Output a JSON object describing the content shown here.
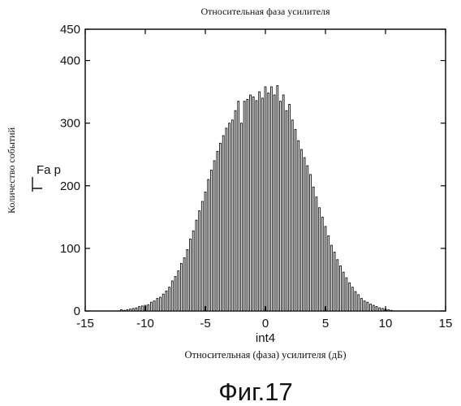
{
  "figure": {
    "title": "Относительная фаза усилителя",
    "caption": "Фиг.17"
  },
  "chart_data": {
    "type": "bar",
    "title": "Относительная фаза усилителя",
    "xlabel": "Относительная (фаза) усилителя (дБ)",
    "xlabel_inner": "int4",
    "ylabel": "Количество событий",
    "ylabel_inner": "Fa p",
    "xlim": [
      -15,
      15
    ],
    "ylim": [
      0,
      450
    ],
    "xticks": [
      "-15",
      "-10",
      "-5",
      "0",
      "5",
      "10",
      "15"
    ],
    "yticks": [
      "0",
      "100",
      "200",
      "300",
      "400",
      "450"
    ],
    "bin_width": 0.25,
    "bin_centers": [
      -12.0,
      -11.75,
      -11.5,
      -11.25,
      -11.0,
      -10.75,
      -10.5,
      -10.25,
      -10.0,
      -9.75,
      -9.5,
      -9.25,
      -9.0,
      -8.75,
      -8.5,
      -8.25,
      -8.0,
      -7.75,
      -7.5,
      -7.25,
      -7.0,
      -6.75,
      -6.5,
      -6.25,
      -6.0,
      -5.75,
      -5.5,
      -5.25,
      -5.0,
      -4.75,
      -4.5,
      -4.25,
      -4.0,
      -3.75,
      -3.5,
      -3.25,
      -3.0,
      -2.75,
      -2.5,
      -2.25,
      -2.0,
      -1.75,
      -1.5,
      -1.25,
      -1.0,
      -0.75,
      -0.5,
      -0.25,
      0.0,
      0.25,
      0.5,
      0.75,
      1.0,
      1.25,
      1.5,
      1.75,
      2.0,
      2.25,
      2.5,
      2.75,
      3.0,
      3.25,
      3.5,
      3.75,
      4.0,
      4.25,
      4.5,
      4.75,
      5.0,
      5.25,
      5.5,
      5.75,
      6.0,
      6.25,
      6.5,
      6.75,
      7.0,
      7.25,
      7.5,
      7.75,
      8.0,
      8.25,
      8.5,
      8.75,
      9.0,
      9.25,
      9.5,
      9.75,
      10.0,
      10.25,
      10.5
    ],
    "values": [
      2,
      1,
      2,
      3,
      4,
      5,
      7,
      8,
      9,
      10,
      14,
      16,
      20,
      22,
      27,
      32,
      38,
      48,
      55,
      64,
      76,
      85,
      98,
      115,
      128,
      145,
      160,
      175,
      190,
      210,
      225,
      240,
      255,
      268,
      280,
      292,
      300,
      305,
      320,
      335,
      300,
      335,
      338,
      345,
      342,
      336,
      350,
      340,
      358,
      348,
      358,
      345,
      360,
      335,
      345,
      320,
      330,
      305,
      290,
      272,
      258,
      245,
      232,
      218,
      198,
      182,
      165,
      150,
      135,
      120,
      105,
      94,
      82,
      72,
      62,
      53,
      45,
      38,
      31,
      26,
      20,
      16,
      14,
      11,
      9,
      7,
      5,
      4,
      3,
      2,
      1
    ]
  }
}
